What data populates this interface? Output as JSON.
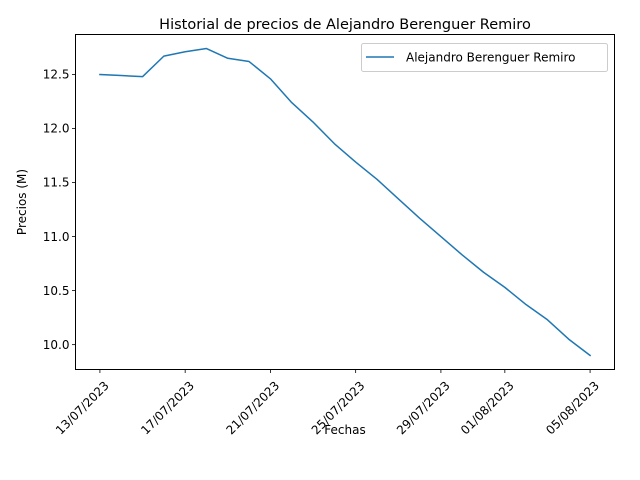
{
  "chart_data": {
    "type": "line",
    "title": "Historial de precios de Alejandro Berenguer Remiro",
    "xlabel": "Fechas",
    "ylabel": "Precios (M)",
    "x_ticks": [
      "13/07/2023",
      "17/07/2023",
      "21/07/2023",
      "25/07/2023",
      "29/07/2023",
      "01/08/2023",
      "05/08/2023"
    ],
    "y_ticks": [
      "10.0",
      "10.5",
      "11.0",
      "11.5",
      "12.0",
      "12.5"
    ],
    "ylim": [
      9.77,
      12.87
    ],
    "xlim": [
      "2023-07-11T20:30",
      "2023-08-06T03:30"
    ],
    "legend_position": "upper right",
    "grid": false,
    "series": [
      {
        "name": "Alejandro Berenguer Remiro",
        "color": "#1f77b4",
        "x": [
          "2023-07-13",
          "2023-07-14",
          "2023-07-15",
          "2023-07-16",
          "2023-07-17",
          "2023-07-18",
          "2023-07-19",
          "2023-07-20",
          "2023-07-21",
          "2023-07-22",
          "2023-07-23",
          "2023-07-24",
          "2023-07-25",
          "2023-07-26",
          "2023-07-27",
          "2023-07-28",
          "2023-07-29",
          "2023-07-30",
          "2023-07-31",
          "2023-08-01",
          "2023-08-02",
          "2023-08-03",
          "2023-08-04",
          "2023-08-05"
        ],
        "values": [
          12.5,
          12.49,
          12.48,
          12.67,
          12.71,
          12.74,
          12.65,
          12.62,
          12.46,
          12.24,
          12.06,
          11.86,
          11.69,
          11.53,
          11.35,
          11.17,
          11.0,
          10.83,
          10.67,
          10.53,
          10.37,
          10.23,
          10.05,
          9.9
        ]
      }
    ]
  }
}
